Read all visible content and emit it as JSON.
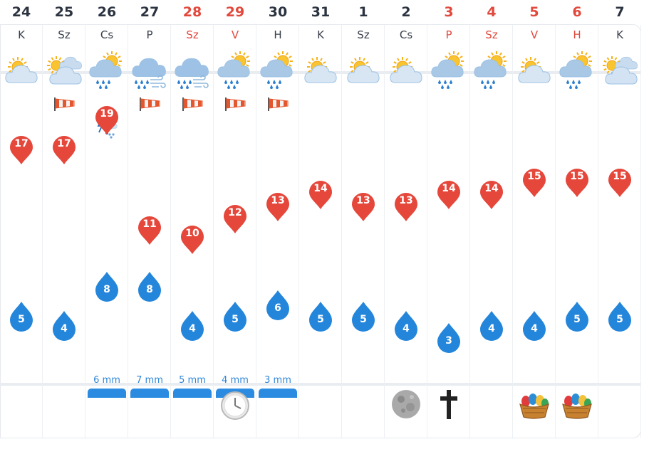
{
  "days": [
    {
      "date": "24",
      "day": "K",
      "red": false,
      "icon": "partly-cloudy-icon",
      "wind": false,
      "snow": false,
      "high": 17,
      "high_y": 0.25,
      "low": 5,
      "low_y": 0.82,
      "precip": "",
      "event": ""
    },
    {
      "date": "25",
      "day": "Sz",
      "red": false,
      "icon": "cloudy-sun-icon",
      "wind": true,
      "snow": false,
      "high": 17,
      "high_y": 0.25,
      "low": 4,
      "low_y": 0.85,
      "precip": "",
      "event": ""
    },
    {
      "date": "26",
      "day": "Cs",
      "red": false,
      "icon": "sun-rain-cloud-icon",
      "wind": false,
      "snow": true,
      "high": 19,
      "high_y": 0.15,
      "low": 8,
      "low_y": 0.72,
      "precip": "6 mm",
      "event": ""
    },
    {
      "date": "27",
      "day": "P",
      "red": false,
      "icon": "rain-wind-cloud-icon",
      "wind": true,
      "snow": false,
      "high": 11,
      "high_y": 0.52,
      "low": 8,
      "low_y": 0.72,
      "precip": "7 mm",
      "event": ""
    },
    {
      "date": "28",
      "day": "Sz",
      "red": true,
      "icon": "rain-wind-cloud-icon",
      "wind": true,
      "snow": false,
      "high": 10,
      "high_y": 0.55,
      "low": 4,
      "low_y": 0.85,
      "precip": "5 mm",
      "event": ""
    },
    {
      "date": "29",
      "day": "V",
      "red": true,
      "icon": "sun-rain-cloud-icon",
      "wind": true,
      "snow": false,
      "high": 12,
      "high_y": 0.48,
      "low": 5,
      "low_y": 0.82,
      "precip": "4 mm",
      "event": "clock-icon"
    },
    {
      "date": "30",
      "day": "H",
      "red": false,
      "icon": "sun-rain-cloud-icon",
      "wind": true,
      "snow": false,
      "high": 13,
      "high_y": 0.44,
      "low": 6,
      "low_y": 0.78,
      "precip": "3 mm",
      "event": ""
    },
    {
      "date": "31",
      "day": "K",
      "red": false,
      "icon": "partly-cloudy-icon",
      "wind": false,
      "snow": false,
      "high": 14,
      "high_y": 0.4,
      "low": 5,
      "low_y": 0.82,
      "precip": "",
      "event": ""
    },
    {
      "date": "1",
      "day": "Sz",
      "red": false,
      "icon": "partly-cloudy-icon",
      "wind": false,
      "snow": false,
      "high": 13,
      "high_y": 0.44,
      "low": 5,
      "low_y": 0.82,
      "precip": "",
      "event": ""
    },
    {
      "date": "2",
      "day": "Cs",
      "red": false,
      "icon": "partly-cloudy-icon",
      "wind": false,
      "snow": false,
      "high": 13,
      "high_y": 0.44,
      "low": 4,
      "low_y": 0.85,
      "precip": "",
      "event": "full-moon-icon"
    },
    {
      "date": "3",
      "day": "P",
      "red": true,
      "icon": "sun-rain-cloud-icon",
      "wind": false,
      "snow": false,
      "high": 14,
      "high_y": 0.4,
      "low": 3,
      "low_y": 0.89,
      "precip": "",
      "event": "cross-icon"
    },
    {
      "date": "4",
      "day": "Sz",
      "red": true,
      "icon": "sun-rain-cloud-icon",
      "wind": false,
      "snow": false,
      "high": 14,
      "high_y": 0.4,
      "low": 4,
      "low_y": 0.85,
      "precip": "",
      "event": ""
    },
    {
      "date": "5",
      "day": "V",
      "red": true,
      "icon": "partly-cloudy-icon",
      "wind": false,
      "snow": false,
      "high": 15,
      "high_y": 0.36,
      "low": 4,
      "low_y": 0.85,
      "precip": "",
      "event": "easter-basket-icon"
    },
    {
      "date": "6",
      "day": "H",
      "red": true,
      "icon": "sun-rain-cloud-icon",
      "wind": false,
      "snow": false,
      "high": 15,
      "high_y": 0.36,
      "low": 5,
      "low_y": 0.82,
      "precip": "",
      "event": "easter-basket-icon"
    },
    {
      "date": "7",
      "day": "K",
      "red": false,
      "icon": "cloudy-sun-icon",
      "wind": false,
      "snow": false,
      "high": 15,
      "high_y": 0.36,
      "low": 5,
      "low_y": 0.82,
      "precip": "",
      "event": ""
    }
  ],
  "colors": {
    "high": "#e5473b",
    "low": "#2486db",
    "precip": "#2b8be0",
    "weekend": "#e2483c"
  }
}
